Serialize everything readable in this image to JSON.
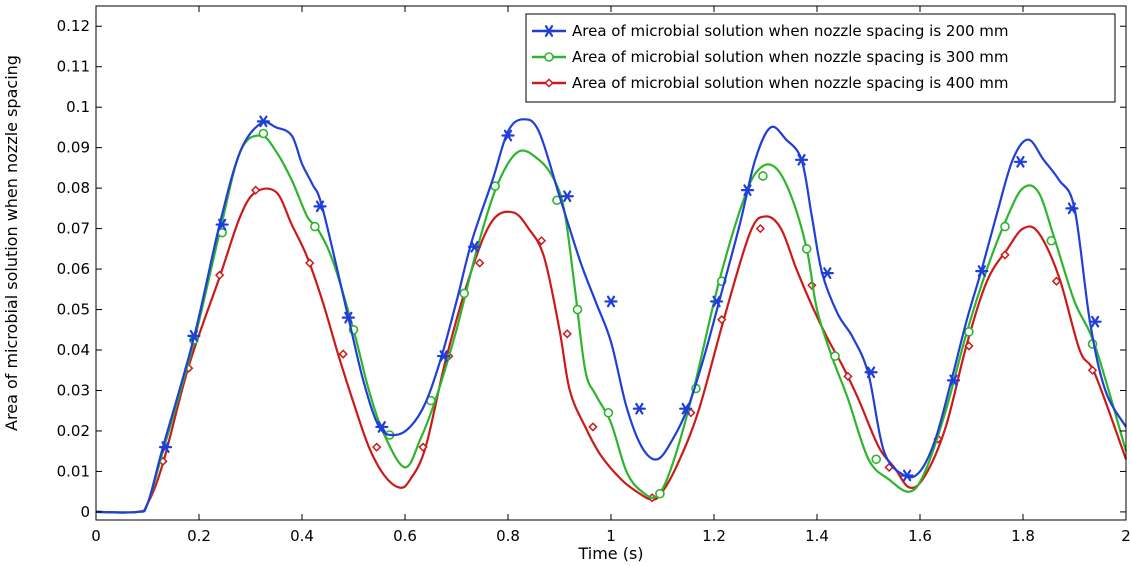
{
  "chart_data": {
    "type": "line",
    "title": "",
    "xlabel": "Time (s)",
    "ylabel": "Area of microbial solution when nozzle spacing",
    "xlim": [
      0,
      2
    ],
    "ylim": [
      -0.002,
      0.125
    ],
    "xticks": [
      0,
      0.2,
      0.4,
      0.6,
      0.8,
      1,
      1.2,
      1.4,
      1.6,
      1.8,
      2
    ],
    "xtick_labels": [
      "0",
      "0.2",
      "0.4",
      "0.6",
      "0.8",
      "1",
      "1.2",
      "1.4",
      "1.6",
      "1.8",
      "2"
    ],
    "yticks": [
      0,
      0.01,
      0.02,
      0.03,
      0.04,
      0.05,
      0.06,
      0.07,
      0.08,
      0.09,
      0.1,
      0.11,
      0.12
    ],
    "ytick_labels": [
      "0",
      "0.01",
      "0.02",
      "0.03",
      "0.04",
      "0.05",
      "0.06",
      "0.07",
      "0.08",
      "0.09",
      "0.1",
      "0.11",
      "0.12"
    ],
    "grid": false,
    "legend_position": "top-right",
    "series": [
      {
        "name": "Area of microbial solution when nozzle spacing is 200 mm",
        "color": "#1f3fd8",
        "marker": "asterisk",
        "x": [
          0,
          0.08,
          0.1,
          0.13,
          0.19,
          0.24,
          0.28,
          0.32,
          0.35,
          0.38,
          0.4,
          0.42,
          0.44,
          0.49,
          0.52,
          0.55,
          0.58,
          0.61,
          0.64,
          0.67,
          0.7,
          0.73,
          0.77,
          0.8,
          0.83,
          0.86,
          0.9,
          0.94,
          0.97,
          1.0,
          1.03,
          1.06,
          1.09,
          1.12,
          1.15,
          1.18,
          1.21,
          1.25,
          1.28,
          1.31,
          1.34,
          1.37,
          1.39,
          1.41,
          1.44,
          1.47,
          1.5,
          1.53,
          1.57,
          1.6,
          1.63,
          1.66,
          1.69,
          1.72,
          1.75,
          1.78,
          1.81,
          1.84,
          1.87,
          1.9,
          1.93,
          1.96,
          2.0
        ],
        "y": [
          0,
          0,
          0.002,
          0.016,
          0.043,
          0.071,
          0.089,
          0.096,
          0.095,
          0.093,
          0.086,
          0.081,
          0.075,
          0.048,
          0.032,
          0.021,
          0.019,
          0.021,
          0.027,
          0.038,
          0.052,
          0.067,
          0.082,
          0.094,
          0.097,
          0.094,
          0.078,
          0.062,
          0.052,
          0.042,
          0.026,
          0.016,
          0.013,
          0.018,
          0.026,
          0.038,
          0.052,
          0.071,
          0.087,
          0.095,
          0.092,
          0.087,
          0.073,
          0.059,
          0.049,
          0.043,
          0.034,
          0.015,
          0.009,
          0.01,
          0.018,
          0.032,
          0.047,
          0.06,
          0.074,
          0.087,
          0.092,
          0.087,
          0.082,
          0.075,
          0.047,
          0.03,
          0.021
        ],
        "marker_x": [
          0.135,
          0.19,
          0.245,
          0.325,
          0.435,
          0.49,
          0.555,
          0.675,
          0.735,
          0.8,
          0.915,
          1.0,
          1.055,
          1.145,
          1.205,
          1.265,
          1.37,
          1.42,
          1.505,
          1.575,
          1.665,
          1.72,
          1.795,
          1.895,
          1.94
        ],
        "marker_y": [
          0.016,
          0.0435,
          0.071,
          0.0965,
          0.0755,
          0.048,
          0.021,
          0.0385,
          0.0655,
          0.093,
          0.078,
          0.052,
          0.0255,
          0.0255,
          0.052,
          0.0795,
          0.087,
          0.059,
          0.0345,
          0.009,
          0.0325,
          0.0595,
          0.0865,
          0.075,
          0.047
        ]
      },
      {
        "name": "Area of microbial solution when nozzle spacing is 300 mm",
        "color": "#2db52d",
        "marker": "circle",
        "x": [
          0,
          0.08,
          0.1,
          0.13,
          0.19,
          0.24,
          0.28,
          0.32,
          0.35,
          0.38,
          0.41,
          0.43,
          0.46,
          0.5,
          0.53,
          0.56,
          0.6,
          0.63,
          0.66,
          0.7,
          0.74,
          0.78,
          0.82,
          0.86,
          0.89,
          0.91,
          0.93,
          0.95,
          0.97,
          1.0,
          1.03,
          1.06,
          1.09,
          1.12,
          1.16,
          1.21,
          1.26,
          1.29,
          1.32,
          1.35,
          1.38,
          1.4,
          1.43,
          1.46,
          1.5,
          1.54,
          1.58,
          1.61,
          1.65,
          1.69,
          1.73,
          1.77,
          1.8,
          1.83,
          1.86,
          1.9,
          1.94,
          2.0
        ],
        "y": [
          0,
          0,
          0.002,
          0.015,
          0.042,
          0.069,
          0.089,
          0.093,
          0.089,
          0.082,
          0.073,
          0.07,
          0.062,
          0.045,
          0.03,
          0.019,
          0.011,
          0.018,
          0.028,
          0.045,
          0.065,
          0.081,
          0.089,
          0.087,
          0.082,
          0.074,
          0.055,
          0.035,
          0.029,
          0.022,
          0.01,
          0.005,
          0.004,
          0.012,
          0.03,
          0.057,
          0.078,
          0.085,
          0.085,
          0.078,
          0.065,
          0.05,
          0.038,
          0.028,
          0.013,
          0.008,
          0.005,
          0.01,
          0.025,
          0.044,
          0.06,
          0.073,
          0.08,
          0.079,
          0.068,
          0.052,
          0.041,
          0.015
        ],
        "marker_x": [
          0.19,
          0.245,
          0.325,
          0.425,
          0.5,
          0.57,
          0.65,
          0.715,
          0.775,
          0.895,
          0.935,
          0.995,
          1.095,
          1.165,
          1.215,
          1.295,
          1.38,
          1.435,
          1.515,
          1.695,
          1.765,
          1.855,
          1.935
        ],
        "marker_y": [
          0.0425,
          0.069,
          0.0935,
          0.0705,
          0.045,
          0.019,
          0.0275,
          0.054,
          0.0805,
          0.077,
          0.05,
          0.0245,
          0.0045,
          0.0305,
          0.057,
          0.083,
          0.065,
          0.0385,
          0.013,
          0.0445,
          0.0705,
          0.067,
          0.0415
        ]
      },
      {
        "name": "Area of microbial solution when nozzle spacing is 400 mm",
        "color": "#cc1a1a",
        "marker": "diamond",
        "x": [
          0,
          0.08,
          0.1,
          0.13,
          0.18,
          0.24,
          0.28,
          0.31,
          0.35,
          0.38,
          0.41,
          0.44,
          0.47,
          0.5,
          0.53,
          0.56,
          0.59,
          0.61,
          0.64,
          0.68,
          0.73,
          0.77,
          0.81,
          0.84,
          0.87,
          0.9,
          0.92,
          0.95,
          0.98,
          1.02,
          1.05,
          1.08,
          1.1,
          1.13,
          1.17,
          1.22,
          1.27,
          1.3,
          1.33,
          1.36,
          1.39,
          1.42,
          1.45,
          1.48,
          1.52,
          1.55,
          1.58,
          1.61,
          1.65,
          1.69,
          1.73,
          1.77,
          1.8,
          1.83,
          1.87,
          1.91,
          1.94,
          2.0
        ],
        "y": [
          0,
          0,
          0.002,
          0.012,
          0.036,
          0.058,
          0.073,
          0.079,
          0.079,
          0.071,
          0.063,
          0.052,
          0.039,
          0.027,
          0.016,
          0.009,
          0.006,
          0.008,
          0.016,
          0.038,
          0.06,
          0.072,
          0.074,
          0.07,
          0.063,
          0.045,
          0.03,
          0.021,
          0.014,
          0.008,
          0.005,
          0.003,
          0.005,
          0.012,
          0.025,
          0.048,
          0.069,
          0.073,
          0.07,
          0.06,
          0.051,
          0.043,
          0.036,
          0.028,
          0.016,
          0.011,
          0.006,
          0.009,
          0.021,
          0.041,
          0.057,
          0.065,
          0.07,
          0.069,
          0.058,
          0.04,
          0.034,
          0.013
        ],
        "marker_x": [
          0.13,
          0.18,
          0.24,
          0.31,
          0.415,
          0.48,
          0.545,
          0.635,
          0.685,
          0.745,
          0.865,
          0.915,
          0.965,
          1.08,
          1.155,
          1.215,
          1.29,
          1.39,
          1.46,
          1.54,
          1.635,
          1.695,
          1.765,
          1.865,
          1.935
        ],
        "marker_y": [
          0.0125,
          0.0355,
          0.0585,
          0.0795,
          0.0615,
          0.039,
          0.016,
          0.016,
          0.0385,
          0.0615,
          0.067,
          0.044,
          0.021,
          0.0035,
          0.0245,
          0.0475,
          0.07,
          0.056,
          0.0335,
          0.011,
          0.018,
          0.041,
          0.0635,
          0.057,
          0.035
        ]
      }
    ]
  }
}
